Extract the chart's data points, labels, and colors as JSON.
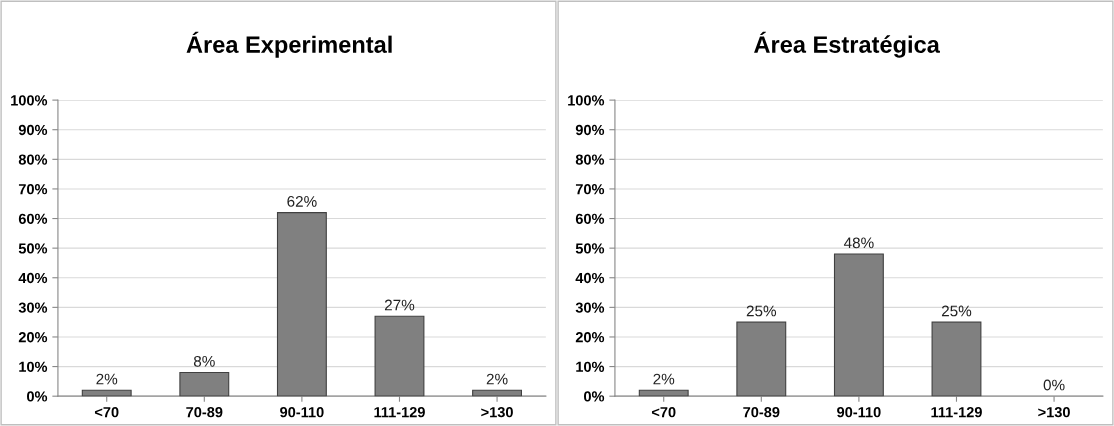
{
  "chart_data": [
    {
      "type": "bar",
      "title": "Área Experimental",
      "categories": [
        "<70",
        "70-89",
        "90-110",
        "111-129",
        ">130"
      ],
      "values": [
        2,
        8,
        62,
        27,
        2
      ],
      "value_labels": [
        "2%",
        "8%",
        "62%",
        "27%",
        "2%"
      ],
      "color": "#808080",
      "ylim": [
        0,
        100
      ],
      "yticks": [
        {
          "value": 0,
          "label": "0%"
        },
        {
          "value": 10,
          "label": "10%"
        },
        {
          "value": 20,
          "label": "20%"
        },
        {
          "value": 30,
          "label": "30%"
        },
        {
          "value": 40,
          "label": "40%"
        },
        {
          "value": 50,
          "label": "50%"
        },
        {
          "value": 60,
          "label": "60%"
        },
        {
          "value": 70,
          "label": "70%"
        },
        {
          "value": 80,
          "label": "80%"
        },
        {
          "value": 90,
          "label": "90%"
        },
        {
          "value": 100,
          "label": "100%"
        }
      ],
      "grid": "y",
      "legend": false
    },
    {
      "type": "bar",
      "title": "Área Estratégica",
      "categories": [
        "<70",
        "70-89",
        "90-110",
        "111-129",
        ">130"
      ],
      "values": [
        2,
        25,
        48,
        25,
        0
      ],
      "value_labels": [
        "2%",
        "25%",
        "48%",
        "25%",
        "0%"
      ],
      "color": "#808080",
      "ylim": [
        0,
        100
      ],
      "yticks": [
        {
          "value": 0,
          "label": "0%"
        },
        {
          "value": 10,
          "label": "10%"
        },
        {
          "value": 20,
          "label": "20%"
        },
        {
          "value": 30,
          "label": "30%"
        },
        {
          "value": 40,
          "label": "40%"
        },
        {
          "value": 50,
          "label": "50%"
        },
        {
          "value": 60,
          "label": "60%"
        },
        {
          "value": 70,
          "label": "70%"
        },
        {
          "value": 80,
          "label": "80%"
        },
        {
          "value": 90,
          "label": "90%"
        },
        {
          "value": 100,
          "label": "100%"
        }
      ],
      "grid": "y",
      "legend": false
    }
  ]
}
